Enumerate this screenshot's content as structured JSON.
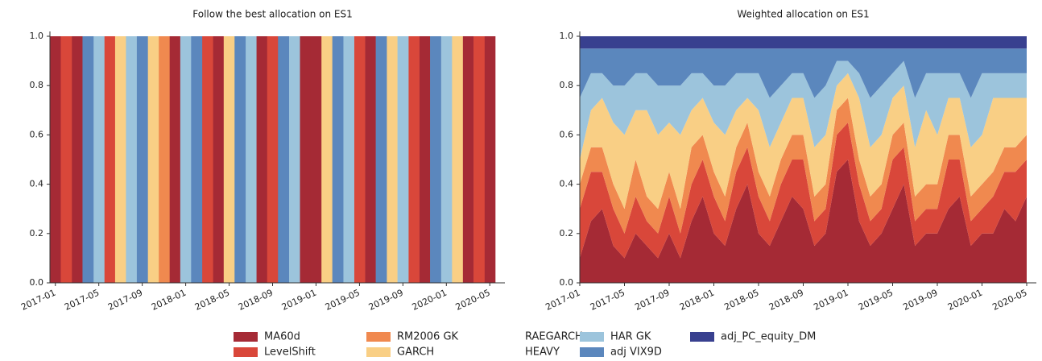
{
  "chart_data": [
    {
      "type": "stacked_bar",
      "title": "Follow the best allocation on ES1",
      "categories": [
        "2017-01",
        null,
        null,
        null,
        "2017-05",
        null,
        null,
        null,
        "2017-09",
        null,
        null,
        null,
        "2018-01",
        null,
        null,
        null,
        "2018-05",
        null,
        null,
        null,
        "2018-09",
        null,
        null,
        null,
        "2019-01",
        null,
        null,
        null,
        "2019-05",
        null,
        null,
        null,
        "2019-09",
        null,
        null,
        null,
        "2020-01",
        null,
        null,
        null,
        "2020-05"
      ],
      "ylim": [
        0,
        1
      ],
      "yticks": [
        {
          "value": 0,
          "label": "0.0"
        },
        {
          "value": 0.2,
          "label": "0.2"
        },
        {
          "value": 0.4,
          "label": "0.4"
        },
        {
          "value": 0.6,
          "label": "0.6"
        },
        {
          "value": 0.8,
          "label": "0.8"
        },
        {
          "value": 1,
          "label": "1.0"
        }
      ],
      "series": [
        {
          "name": "MA60d",
          "color": "#a52a35",
          "values": [
            1,
            0,
            1,
            0,
            0,
            0,
            0,
            0,
            0,
            0,
            0,
            1,
            0,
            0,
            0,
            1,
            0,
            0,
            0,
            1,
            0,
            0,
            0,
            1,
            1,
            0,
            0,
            0,
            0,
            1,
            0,
            0,
            0,
            0,
            1,
            0,
            0,
            0,
            1,
            0,
            1
          ]
        },
        {
          "name": "LevelShift",
          "color": "#d9473a",
          "values": [
            0,
            1,
            0,
            0,
            0,
            1,
            0,
            0,
            0,
            0,
            0,
            0,
            0,
            0,
            1,
            0,
            0,
            0,
            0,
            0,
            1,
            0,
            0,
            0,
            0,
            0,
            0,
            0,
            1,
            0,
            0,
            0,
            0,
            1,
            0,
            0,
            0,
            0,
            0,
            1,
            0
          ]
        },
        {
          "name": "RM2006 GK",
          "color": "#f0894f",
          "values": [
            0,
            0,
            0,
            0,
            0,
            0,
            0,
            0,
            0,
            0,
            1,
            0,
            0,
            0,
            0,
            0,
            0,
            0,
            0,
            0,
            0,
            0,
            0,
            0,
            0,
            0,
            0,
            0,
            0,
            0,
            0,
            0,
            0,
            0,
            0,
            0,
            0,
            0,
            0,
            0,
            0
          ]
        },
        {
          "name": "GARCH",
          "color": "#f9cf85",
          "values": [
            0,
            0,
            0,
            0,
            0,
            0,
            1,
            0,
            0,
            1,
            0,
            0,
            0,
            0,
            0,
            0,
            1,
            0,
            0,
            0,
            0,
            0,
            0,
            0,
            0,
            1,
            0,
            0,
            0,
            0,
            0,
            1,
            0,
            0,
            0,
            0,
            0,
            1,
            0,
            0,
            0
          ]
        },
        {
          "name": "RAEGARCH",
          "color": "#ffffff",
          "values": [
            0,
            0,
            0,
            0,
            0,
            0,
            0,
            0,
            0,
            0,
            0,
            0,
            0,
            0,
            0,
            0,
            0,
            0,
            0,
            0,
            0,
            0,
            0,
            0,
            0,
            0,
            0,
            0,
            0,
            0,
            0,
            0,
            0,
            0,
            0,
            0,
            0,
            0,
            0,
            0,
            0
          ]
        },
        {
          "name": "HEAVY",
          "color": "#ffffff",
          "values": [
            0,
            0,
            0,
            0,
            0,
            0,
            0,
            0,
            0,
            0,
            0,
            0,
            0,
            0,
            0,
            0,
            0,
            0,
            0,
            0,
            0,
            0,
            0,
            0,
            0,
            0,
            0,
            0,
            0,
            0,
            0,
            0,
            0,
            0,
            0,
            0,
            0,
            0,
            0,
            0,
            0
          ]
        },
        {
          "name": "HAR GK",
          "color": "#9cc4dc",
          "values": [
            0,
            0,
            0,
            0,
            1,
            0,
            0,
            1,
            0,
            0,
            0,
            0,
            1,
            0,
            0,
            0,
            0,
            0,
            1,
            0,
            0,
            0,
            1,
            0,
            0,
            0,
            0,
            1,
            0,
            0,
            0,
            0,
            1,
            0,
            0,
            0,
            1,
            0,
            0,
            0,
            0
          ]
        },
        {
          "name": "adj VIX9D",
          "color": "#5b87bd",
          "values": [
            0,
            0,
            0,
            1,
            0,
            0,
            0,
            0,
            1,
            0,
            0,
            0,
            0,
            1,
            0,
            0,
            0,
            1,
            0,
            0,
            0,
            1,
            0,
            0,
            0,
            0,
            1,
            0,
            0,
            0,
            1,
            0,
            0,
            0,
            0,
            1,
            0,
            0,
            0,
            0,
            0
          ]
        },
        {
          "name": "adj_PC_equity_DM",
          "color": "#38408f",
          "values": [
            0,
            0,
            0,
            0,
            0,
            0,
            0,
            0,
            0,
            0,
            0,
            0,
            0,
            0,
            0,
            0,
            0,
            0,
            0,
            0,
            0,
            0,
            0,
            0,
            0,
            0,
            0,
            0,
            0,
            0,
            0,
            0,
            0,
            0,
            0,
            0,
            0,
            0,
            0,
            0,
            0
          ]
        }
      ]
    },
    {
      "type": "stacked_area",
      "title": "Weighted allocation on ES1",
      "categories": [
        "2017-01",
        null,
        null,
        null,
        "2017-05",
        null,
        null,
        null,
        "2017-09",
        null,
        null,
        null,
        "2018-01",
        null,
        null,
        null,
        "2018-05",
        null,
        null,
        null,
        "2018-09",
        null,
        null,
        null,
        "2019-01",
        null,
        null,
        null,
        "2019-05",
        null,
        null,
        null,
        "2019-09",
        null,
        null,
        null,
        "2020-01",
        null,
        null,
        null,
        "2020-05"
      ],
      "ylim": [
        0,
        1
      ],
      "yticks": [
        {
          "value": 0,
          "label": "0.0"
        },
        {
          "value": 0.2,
          "label": "0.2"
        },
        {
          "value": 0.4,
          "label": "0.4"
        },
        {
          "value": 0.6,
          "label": "0.6"
        },
        {
          "value": 0.8,
          "label": "0.8"
        },
        {
          "value": 1,
          "label": "1.0"
        }
      ],
      "series": [
        {
          "name": "MA60d",
          "color": "#a52a35",
          "values": [
            0.1,
            0.25,
            0.3,
            0.15,
            0.1,
            0.2,
            0.15,
            0.1,
            0.2,
            0.1,
            0.25,
            0.35,
            0.2,
            0.15,
            0.3,
            0.4,
            0.2,
            0.15,
            0.25,
            0.35,
            0.3,
            0.15,
            0.2,
            0.45,
            0.5,
            0.25,
            0.15,
            0.2,
            0.3,
            0.4,
            0.15,
            0.2,
            0.2,
            0.3,
            0.35,
            0.15,
            0.2,
            0.2,
            0.3,
            0.25,
            0.35
          ]
        },
        {
          "name": "LevelShift",
          "color": "#d9473a",
          "values": [
            0.2,
            0.2,
            0.15,
            0.15,
            0.1,
            0.15,
            0.1,
            0.1,
            0.15,
            0.1,
            0.15,
            0.15,
            0.15,
            0.1,
            0.15,
            0.15,
            0.15,
            0.1,
            0.15,
            0.15,
            0.2,
            0.1,
            0.1,
            0.15,
            0.15,
            0.15,
            0.1,
            0.1,
            0.2,
            0.15,
            0.1,
            0.1,
            0.1,
            0.2,
            0.15,
            0.1,
            0.1,
            0.15,
            0.15,
            0.2,
            0.15
          ]
        },
        {
          "name": "RM2006 GK",
          "color": "#f0894f",
          "values": [
            0.1,
            0.1,
            0.1,
            0.1,
            0.1,
            0.15,
            0.1,
            0.1,
            0.1,
            0.1,
            0.15,
            0.1,
            0.1,
            0.1,
            0.1,
            0.1,
            0.1,
            0.1,
            0.1,
            0.1,
            0.1,
            0.1,
            0.1,
            0.1,
            0.1,
            0.1,
            0.1,
            0.1,
            0.1,
            0.1,
            0.1,
            0.1,
            0.1,
            0.1,
            0.1,
            0.1,
            0.1,
            0.1,
            0.1,
            0.1,
            0.1
          ]
        },
        {
          "name": "GARCH",
          "color": "#f9cf85",
          "values": [
            0.1,
            0.15,
            0.2,
            0.25,
            0.3,
            0.2,
            0.35,
            0.3,
            0.2,
            0.3,
            0.15,
            0.15,
            0.2,
            0.25,
            0.15,
            0.1,
            0.25,
            0.2,
            0.15,
            0.15,
            0.15,
            0.2,
            0.2,
            0.1,
            0.1,
            0.25,
            0.2,
            0.2,
            0.15,
            0.15,
            0.2,
            0.3,
            0.2,
            0.15,
            0.15,
            0.2,
            0.2,
            0.3,
            0.2,
            0.2,
            0.15
          ]
        },
        {
          "name": "RAEGARCH",
          "color": "#ffffff",
          "values": [
            0,
            0,
            0,
            0,
            0,
            0,
            0,
            0,
            0,
            0,
            0,
            0,
            0,
            0,
            0,
            0,
            0,
            0,
            0,
            0,
            0,
            0,
            0,
            0,
            0,
            0,
            0,
            0,
            0,
            0,
            0,
            0,
            0,
            0,
            0,
            0,
            0,
            0,
            0,
            0,
            0
          ]
        },
        {
          "name": "HEAVY",
          "color": "#ffffff",
          "values": [
            0,
            0,
            0,
            0,
            0,
            0,
            0,
            0,
            0,
            0,
            0,
            0,
            0,
            0,
            0,
            0,
            0,
            0,
            0,
            0,
            0,
            0,
            0,
            0,
            0,
            0,
            0,
            0,
            0,
            0,
            0,
            0,
            0,
            0,
            0,
            0,
            0,
            0,
            0,
            0,
            0
          ]
        },
        {
          "name": "HAR GK",
          "color": "#9cc4dc",
          "values": [
            0.25,
            0.15,
            0.1,
            0.15,
            0.2,
            0.15,
            0.15,
            0.2,
            0.15,
            0.2,
            0.15,
            0.1,
            0.15,
            0.2,
            0.15,
            0.1,
            0.15,
            0.2,
            0.15,
            0.1,
            0.1,
            0.2,
            0.2,
            0.1,
            0.05,
            0.1,
            0.2,
            0.2,
            0.1,
            0.1,
            0.2,
            0.15,
            0.25,
            0.1,
            0.1,
            0.2,
            0.25,
            0.1,
            0.1,
            0.1,
            0.1
          ]
        },
        {
          "name": "adj VIX9D",
          "color": "#5b87bd",
          "values": [
            0.2,
            0.1,
            0.1,
            0.15,
            0.15,
            0.1,
            0.1,
            0.15,
            0.15,
            0.15,
            0.1,
            0.1,
            0.15,
            0.15,
            0.1,
            0.1,
            0.1,
            0.2,
            0.15,
            0.1,
            0.1,
            0.2,
            0.15,
            0.05,
            0.05,
            0.1,
            0.2,
            0.15,
            0.1,
            0.05,
            0.2,
            0.1,
            0.1,
            0.1,
            0.1,
            0.2,
            0.1,
            0.1,
            0.1,
            0.1,
            0.1
          ]
        },
        {
          "name": "adj_PC_equity_DM",
          "color": "#38408f",
          "values": [
            0.05,
            0.05,
            0.05,
            0.05,
            0.05,
            0.05,
            0.05,
            0.05,
            0.05,
            0.05,
            0.05,
            0.05,
            0.05,
            0.05,
            0.05,
            0.05,
            0.05,
            0.05,
            0.05,
            0.05,
            0.05,
            0.05,
            0.05,
            0.05,
            0.05,
            0.05,
            0.05,
            0.05,
            0.05,
            0.05,
            0.05,
            0.05,
            0.05,
            0.05,
            0.05,
            0.05,
            0.05,
            0.05,
            0.05,
            0.05,
            0.05
          ]
        }
      ]
    }
  ]
}
